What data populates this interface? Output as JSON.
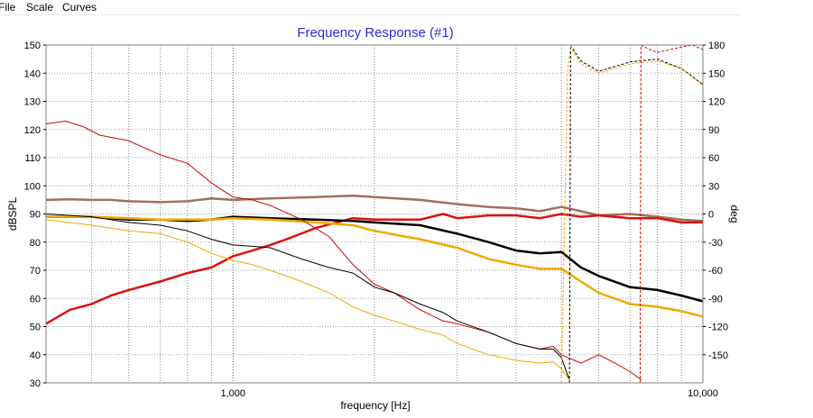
{
  "menu": {
    "items": [
      "File",
      "Scale",
      "Curves"
    ]
  },
  "chart_data": {
    "type": "line",
    "title": "Frequency Response (#1)",
    "xlabel": "frequency [Hz]",
    "ylabel": "dBSPL",
    "y2label": "deg",
    "xscale": "log",
    "xlim": [
      400,
      10000
    ],
    "ylim": [
      30,
      150
    ],
    "y2lim": [
      -180,
      180
    ],
    "x_tick_labels": [
      {
        "value": 1000,
        "label": "1,000"
      },
      {
        "value": 10000,
        "label": "10,000"
      }
    ],
    "y_ticks": [
      30,
      40,
      50,
      60,
      70,
      80,
      90,
      100,
      110,
      120,
      130,
      140,
      150
    ],
    "y2_ticks": [
      -150,
      -120,
      -90,
      -60,
      -30,
      0,
      30,
      60,
      90,
      120,
      150,
      180
    ],
    "grid": true,
    "series": [
      {
        "color": "#a0705a",
        "width": 2.5,
        "axis": "left",
        "x": [
          400,
          450,
          500,
          550,
          600,
          700,
          800,
          900,
          1000,
          1200,
          1500,
          1800,
          2000,
          2500,
          3000,
          3500,
          4000,
          4500,
          5000,
          5500,
          6000,
          7000,
          8000,
          9000,
          10000
        ],
        "y": [
          95,
          95.2,
          95,
          95,
          94.5,
          94.2,
          94.5,
          95.5,
          95,
          95.5,
          96,
          96.5,
          96,
          95,
          93.5,
          92.5,
          92,
          91,
          92.5,
          91,
          89.5,
          90,
          89,
          88,
          87.5
        ]
      },
      {
        "color": "#dd1111",
        "width": 2.5,
        "axis": "left",
        "x": [
          400,
          450,
          500,
          550,
          600,
          700,
          800,
          900,
          1000,
          1100,
          1200,
          1300,
          1500,
          1800,
          2000,
          2500,
          2800,
          3000,
          3500,
          4000,
          4500,
          5000,
          5500,
          6000,
          7000,
          8000,
          9000,
          10000
        ],
        "y": [
          51,
          56,
          58,
          61,
          63,
          66,
          69,
          71,
          75,
          77,
          79,
          81,
          85,
          88.5,
          88,
          88,
          90,
          88.5,
          89.5,
          89.5,
          88.5,
          90,
          89,
          89.5,
          88.5,
          88.5,
          87,
          87
        ]
      },
      {
        "color": "#000000",
        "width": 2.5,
        "axis": "left",
        "x": [
          400,
          500,
          600,
          700,
          800,
          900,
          1000,
          1200,
          1500,
          1800,
          2000,
          2500,
          3000,
          3500,
          4000,
          4500,
          5000,
          5500,
          6000,
          7000,
          8000,
          9000,
          10000
        ],
        "y": [
          89,
          89,
          88,
          88,
          87.5,
          88,
          89,
          88.5,
          88,
          87.5,
          87,
          86,
          83,
          80,
          77,
          76,
          76.5,
          71,
          68,
          64,
          63,
          61,
          59
        ]
      },
      {
        "color": "#f0a800",
        "width": 2.5,
        "axis": "left",
        "x": [
          400,
          500,
          600,
          700,
          800,
          900,
          1000,
          1200,
          1500,
          1800,
          2000,
          2500,
          3000,
          3500,
          4000,
          4500,
          5000,
          5500,
          6000,
          7000,
          8000,
          9000,
          10000
        ],
        "y": [
          89,
          89,
          88.5,
          88,
          88,
          88,
          88.5,
          88,
          87,
          86,
          84,
          81,
          78,
          74,
          72,
          70.5,
          70.5,
          66,
          62,
          58,
          57,
          55.5,
          53.5
        ]
      },
      {
        "color": "#cc0000",
        "width": 1,
        "axis": "left",
        "x": [
          400,
          440,
          480,
          520,
          600,
          700,
          800,
          900,
          1000,
          1100,
          1200,
          1400,
          1600,
          1800,
          2000,
          2200,
          2500,
          2800,
          3000,
          3500,
          4000,
          4500,
          4800,
          5000,
          5500,
          6000,
          6500,
          7000,
          7400
        ],
        "y": [
          122,
          123,
          121,
          118,
          116,
          111,
          108,
          101,
          96,
          95,
          93,
          88,
          82,
          72,
          65,
          62,
          56,
          52,
          51,
          48,
          44,
          42,
          43,
          40,
          37,
          40,
          37,
          34,
          31
        ]
      },
      {
        "color": "#000000",
        "width": 1,
        "axis": "left",
        "x": [
          400,
          500,
          600,
          700,
          800,
          900,
          1000,
          1100,
          1200,
          1400,
          1600,
          1800,
          2000,
          2200,
          2500,
          2800,
          3000,
          3500,
          4000,
          4500,
          4800,
          5000,
          5200
        ],
        "y": [
          90,
          89,
          87,
          86,
          84,
          81,
          79,
          78.5,
          78,
          74,
          71,
          69,
          64,
          62,
          58,
          55,
          52,
          48,
          44,
          42,
          42,
          39,
          31
        ]
      },
      {
        "color": "#f0a800",
        "width": 1,
        "axis": "left",
        "x": [
          400,
          500,
          600,
          700,
          800,
          900,
          1000,
          1100,
          1200,
          1400,
          1600,
          1800,
          2000,
          2200,
          2500,
          2800,
          3000,
          3500,
          4000,
          4500,
          4800,
          5000,
          5200
        ],
        "y": [
          88,
          86,
          84,
          83,
          80,
          76,
          73.5,
          72,
          70,
          66,
          62,
          57,
          54,
          52,
          49,
          47,
          44,
          40,
          38,
          37,
          37.5,
          35,
          31
        ]
      },
      {
        "color": "#000000",
        "width": 1,
        "axis": "right",
        "dash": true,
        "x": [
          5200,
          5230,
          5300,
          5500,
          6000,
          7000,
          8000,
          9000,
          10000
        ],
        "y": [
          -180,
          180,
          175,
          163,
          152,
          162,
          165,
          155,
          138
        ]
      },
      {
        "color": "#f0a800",
        "width": 1,
        "axis": "right",
        "dash": true,
        "x": [
          5000,
          5150,
          5200,
          5230,
          5300,
          5500,
          6000,
          7000,
          8000,
          9000,
          10000
        ],
        "y": [
          -180,
          150,
          170,
          180,
          172,
          160,
          150,
          160,
          163,
          155,
          137
        ]
      },
      {
        "color": "#cc0000",
        "width": 1,
        "axis": "right",
        "dash": true,
        "x": [
          7350,
          7380,
          7500,
          8000,
          8500,
          9000,
          9500,
          10000
        ],
        "y": [
          -180,
          180,
          178,
          172,
          175,
          178,
          180,
          175
        ]
      }
    ]
  }
}
